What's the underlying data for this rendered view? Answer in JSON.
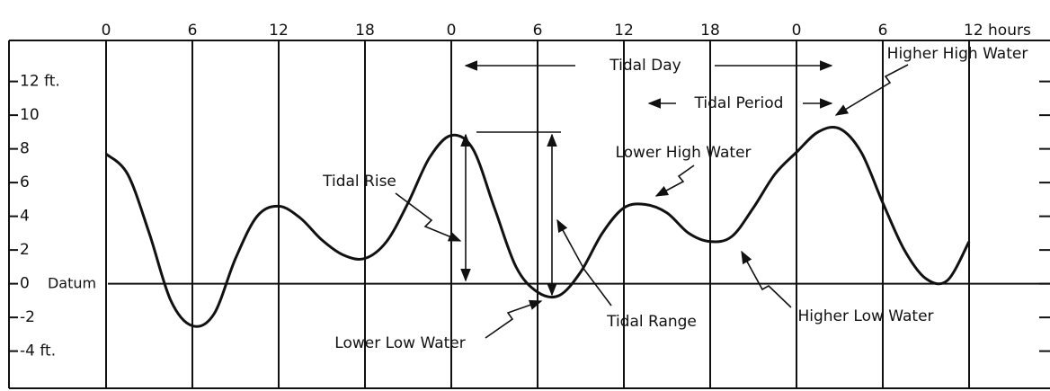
{
  "chart_data": {
    "type": "line",
    "x": [
      0,
      1.5,
      3,
      4.5,
      6,
      7.5,
      9,
      10.5,
      12,
      13.5,
      15,
      16.5,
      18,
      19.5,
      21,
      22.5,
      24,
      25.5,
      27,
      28.5,
      30,
      31.5,
      33,
      34.5,
      36,
      37.5,
      39,
      40.5,
      42,
      43.5,
      45,
      46.5,
      48,
      49.5,
      51,
      52.5,
      54,
      55.5,
      57,
      58.5,
      60
    ],
    "values": [
      7.7,
      6.5,
      3,
      -1,
      -2.5,
      -1.8,
      1.5,
      4,
      4.6,
      3.9,
      2.6,
      1.7,
      1.5,
      2.5,
      4.8,
      7.5,
      8.8,
      8,
      4.5,
      1,
      -0.5,
      -0.7,
      0.7,
      3,
      4.5,
      4.7,
      4.2,
      3,
      2.5,
      2.8,
      4.5,
      6.5,
      7.8,
      9,
      9.2,
      7.8,
      4.8,
      2,
      0.3,
      0.2,
      2.5
    ],
    "color": "#111111",
    "xlim": [
      -6.75,
      65.625
    ],
    "ylim": [
      -6.1,
      14.7
    ],
    "xticks": [
      0,
      {
        "value": 6,
        "label": "6"
      },
      {
        "value": 12,
        "label": "12"
      },
      {
        "value": 18,
        "label": "18"
      },
      {
        "value": 24,
        "label": "0"
      },
      {
        "value": 30,
        "label": "6"
      },
      {
        "value": 36,
        "label": "12"
      },
      {
        "value": 42,
        "label": "18"
      },
      {
        "value": 48,
        "label": "0"
      },
      {
        "value": 54,
        "label": "6"
      },
      {
        "value": 60,
        "label": "12 hours"
      }
    ],
    "yticks": [
      {
        "value": 12,
        "label": "12 ft."
      },
      10,
      8,
      6,
      4,
      2,
      0,
      -2,
      {
        "value": -4,
        "label": "-4 ft."
      }
    ],
    "grid": true,
    "annotations": [
      "Tidal Day",
      "Tidal Period",
      "Higher High Water",
      "Lower High Water",
      "Tidal Rise",
      "Datum",
      "Lower Low Water",
      "Tidal Range",
      "Higher Low Water"
    ]
  }
}
